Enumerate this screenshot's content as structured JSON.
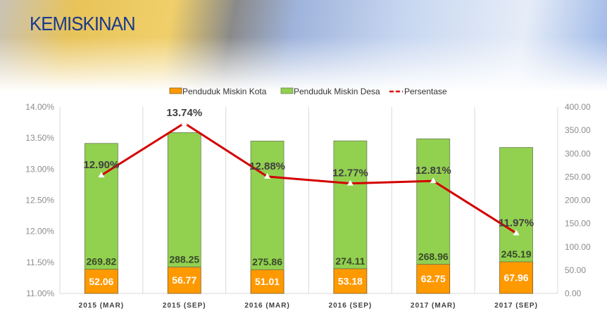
{
  "title": "KEMISKINAN",
  "chart_data": {
    "type": "bar",
    "stacked": true,
    "categories": [
      "2015 (MAR)",
      "2015 (SEP)",
      "2016 (MAR)",
      "2016 (SEP)",
      "2017 (MAR)",
      "2017 (SEP)"
    ],
    "series": [
      {
        "name": "Penduduk Miskin Kota",
        "type": "bar",
        "axis": "right",
        "color": "#ff9900",
        "values": [
          52.06,
          56.77,
          51.01,
          53.18,
          62.75,
          67.96
        ],
        "labels": [
          "52.06",
          "56.77",
          "51.01",
          "53.18",
          "62.75",
          "67.96"
        ]
      },
      {
        "name": "Penduduk Miskin Desa",
        "type": "bar",
        "axis": "right",
        "color": "#92d050",
        "values": [
          269.82,
          288.25,
          275.86,
          274.11,
          268.96,
          245.19
        ],
        "labels": [
          "269.82",
          "288.25",
          "275.86",
          "274.11",
          "268.96",
          "245.19"
        ]
      },
      {
        "name": "Persentase",
        "type": "line",
        "axis": "left",
        "color": "#e00000",
        "values": [
          12.9,
          13.74,
          12.88,
          12.77,
          12.81,
          11.97
        ],
        "labels": [
          "12.90%",
          "13.74%",
          "12.88%",
          "12.77%",
          "12.81%",
          "11.97%"
        ]
      }
    ],
    "y_left": {
      "range": [
        11,
        14
      ],
      "ticks": [
        "11.00%",
        "11.50%",
        "12.00%",
        "12.50%",
        "13.00%",
        "13.50%",
        "14.00%"
      ]
    },
    "y_right": {
      "range": [
        0,
        400
      ],
      "ticks": [
        "0.00",
        "50.00",
        "100.00",
        "150.00",
        "200.00",
        "250.00",
        "300.00",
        "350.00",
        "400.00"
      ]
    },
    "legend": "top",
    "grid": "vertical"
  }
}
